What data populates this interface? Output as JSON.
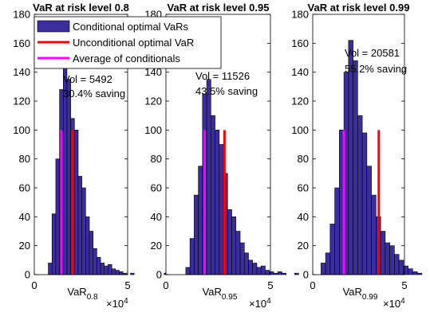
{
  "legend": {
    "entries": [
      {
        "label": "Conditional optimal VaRs",
        "color": "#3a2d9e",
        "kind": "patch"
      },
      {
        "label": "Unconditional optimal VaR",
        "color": "#ff0000",
        "kind": "line"
      },
      {
        "label": "Average of conditionals",
        "color": "#ff00ff",
        "kind": "line"
      }
    ]
  },
  "chart_data": [
    {
      "type": "bar",
      "title": "VaR at risk level 0.8",
      "xlabel": "VaR",
      "xlabel_sub": "0.8",
      "x_multiplier_base": "×10",
      "x_multiplier_exp": "4",
      "xlim": [
        0,
        5
      ],
      "ylim": [
        0,
        180
      ],
      "xticks": [
        "0",
        "5"
      ],
      "yticks": [
        "0",
        "20",
        "40",
        "60",
        "80",
        "100",
        "120",
        "140",
        "160",
        "180"
      ],
      "bin_start": 0.75,
      "bin_width": 0.2,
      "values": [
        8,
        42,
        80,
        128,
        152,
        135,
        108,
        100,
        68,
        60,
        40,
        30,
        18,
        12,
        8,
        6,
        7,
        4,
        3,
        2,
        1,
        0,
        1,
        0,
        0,
        0,
        0,
        0,
        0,
        0,
        0,
        1
      ],
      "unconditional_var": 2.05,
      "unconditional_height": 100,
      "average_conditional": 1.45,
      "average_height": 100,
      "annotation_vol": "Vol = 5492",
      "annotation_saving": "30.4% saving",
      "bar_color": "#3a2d9e",
      "unconditional_color": "#ff0000",
      "average_color": "#ff00ff"
    },
    {
      "type": "bar",
      "title": "VaR at risk level 0.95",
      "xlabel": "VaR",
      "xlabel_sub": "0.95",
      "x_multiplier_base": "×10",
      "x_multiplier_exp": "4",
      "xlim": [
        0,
        5
      ],
      "ylim": [
        0,
        180
      ],
      "xticks": [
        "0",
        "5"
      ],
      "yticks": [
        "0",
        "20",
        "40",
        "60",
        "80",
        "100",
        "120",
        "140",
        "160",
        "180"
      ],
      "bin_start": 0.95,
      "bin_width": 0.2,
      "values": [
        5,
        25,
        55,
        75,
        125,
        135,
        110,
        100,
        90,
        70,
        45,
        40,
        30,
        22,
        15,
        10,
        8,
        5,
        6,
        3,
        2,
        1,
        2,
        1,
        0,
        0,
        1
      ],
      "unconditional_var": 2.8,
      "unconditional_height": 100,
      "average_conditional": 1.85,
      "average_height": 100,
      "annotation_vol": "Vol = 11526",
      "annotation_saving": "43.5% saving",
      "bar_color": "#3a2d9e",
      "unconditional_color": "#ff0000",
      "average_color": "#ff00ff"
    },
    {
      "type": "bar",
      "title": "VaR at risk level 0.99",
      "xlabel": "VaR",
      "xlabel_sub": "0.99",
      "x_multiplier_base": "×10",
      "x_multiplier_exp": "4",
      "xlim": [
        0,
        5
      ],
      "ylim": [
        0,
        180
      ],
      "xticks": [
        "0",
        "5"
      ],
      "yticks": [
        "0",
        "20",
        "40",
        "60",
        "80",
        "100",
        "120",
        "140",
        "160",
        "180"
      ],
      "bin_start": 0.45,
      "bin_width": 0.25,
      "values": [
        8,
        15,
        35,
        60,
        100,
        140,
        162,
        148,
        110,
        98,
        75,
        55,
        40,
        30,
        22,
        20,
        14,
        10,
        6,
        4,
        2,
        1
      ],
      "unconditional_var": 3.6,
      "unconditional_height": 100,
      "average_conditional": 1.7,
      "average_height": 100,
      "annotation_vol": "Vol = 20581",
      "annotation_saving": "55.2% saving",
      "bar_color": "#3a2d9e",
      "unconditional_color": "#ff0000",
      "average_color": "#ff00ff"
    }
  ]
}
